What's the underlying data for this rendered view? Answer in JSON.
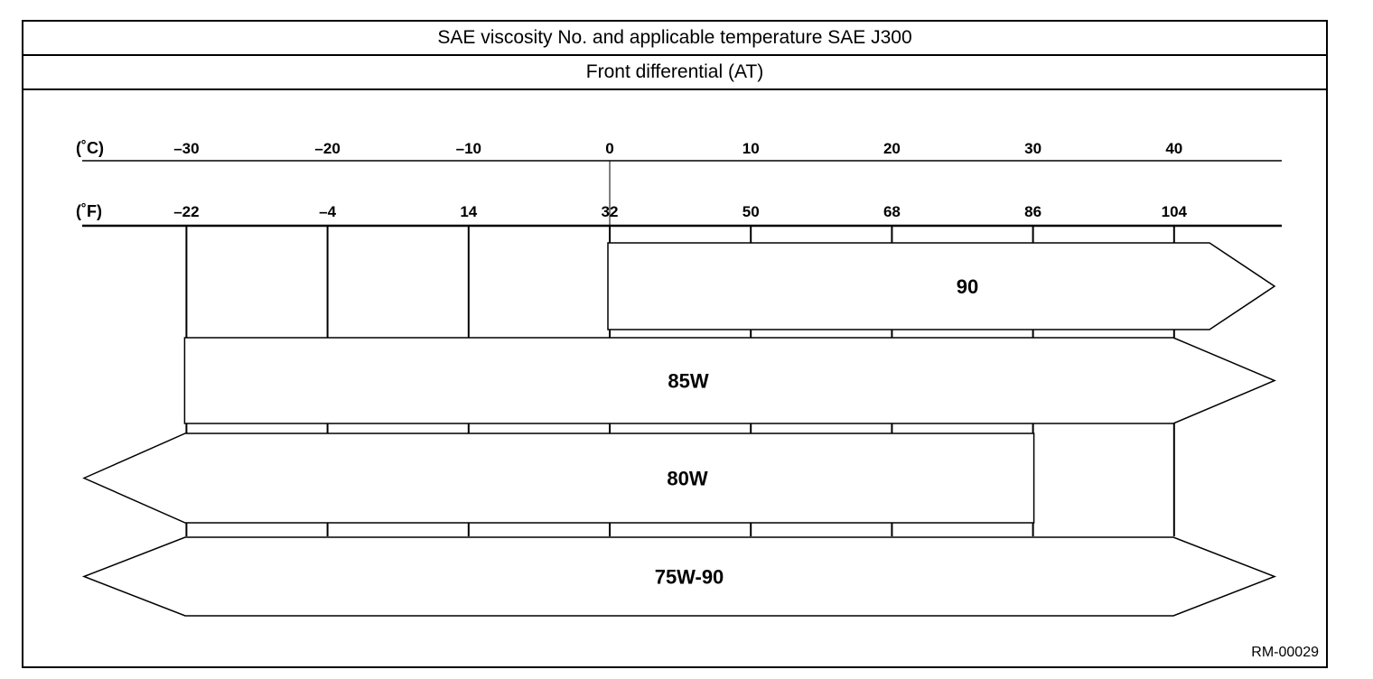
{
  "header": {
    "title": "SAE viscosity No. and applicable temperature SAE J300",
    "subtitle": "Front differential (AT)"
  },
  "figure_code": "RM-00029",
  "chart_data": {
    "type": "range-bar",
    "title": "SAE viscosity No. and applicable temperature SAE J300",
    "subtitle": "Front differential (AT)",
    "axes": {
      "celsius": {
        "unit_label": "(˚C)",
        "ticks": [
          {
            "value": -30,
            "label": "–30"
          },
          {
            "value": -20,
            "label": "–20"
          },
          {
            "value": -10,
            "label": "–10"
          },
          {
            "value": 0,
            "label": "0"
          },
          {
            "value": 10,
            "label": "10"
          },
          {
            "value": 20,
            "label": "20"
          },
          {
            "value": 30,
            "label": "30"
          },
          {
            "value": 40,
            "label": "40"
          }
        ]
      },
      "fahrenheit": {
        "unit_label": "(˚F)",
        "ticks": [
          {
            "value": -22,
            "label": "–22",
            "celsius": -30
          },
          {
            "value": -4,
            "label": "–4",
            "celsius": -20
          },
          {
            "value": 14,
            "label": "14",
            "celsius": -10
          },
          {
            "value": 32,
            "label": "32",
            "celsius": 0
          },
          {
            "value": 50,
            "label": "50",
            "celsius": 10
          },
          {
            "value": 68,
            "label": "68",
            "celsius": 20
          },
          {
            "value": 86,
            "label": "86",
            "celsius": 30
          },
          {
            "value": 104,
            "label": "104",
            "celsius": 40
          }
        ]
      }
    },
    "series": [
      {
        "name": "90",
        "min_c": 0,
        "max_c": null,
        "open_low": false,
        "open_high": true
      },
      {
        "name": "85W",
        "min_c": -30,
        "max_c": null,
        "open_low": false,
        "open_high": true
      },
      {
        "name": "80W",
        "min_c": null,
        "max_c": 30,
        "open_low": true,
        "open_high": false
      },
      {
        "name": "75W-90",
        "min_c": null,
        "max_c": null,
        "open_low": true,
        "open_high": true
      }
    ]
  },
  "colors": {
    "line": "#000000",
    "background": "#ffffff"
  }
}
